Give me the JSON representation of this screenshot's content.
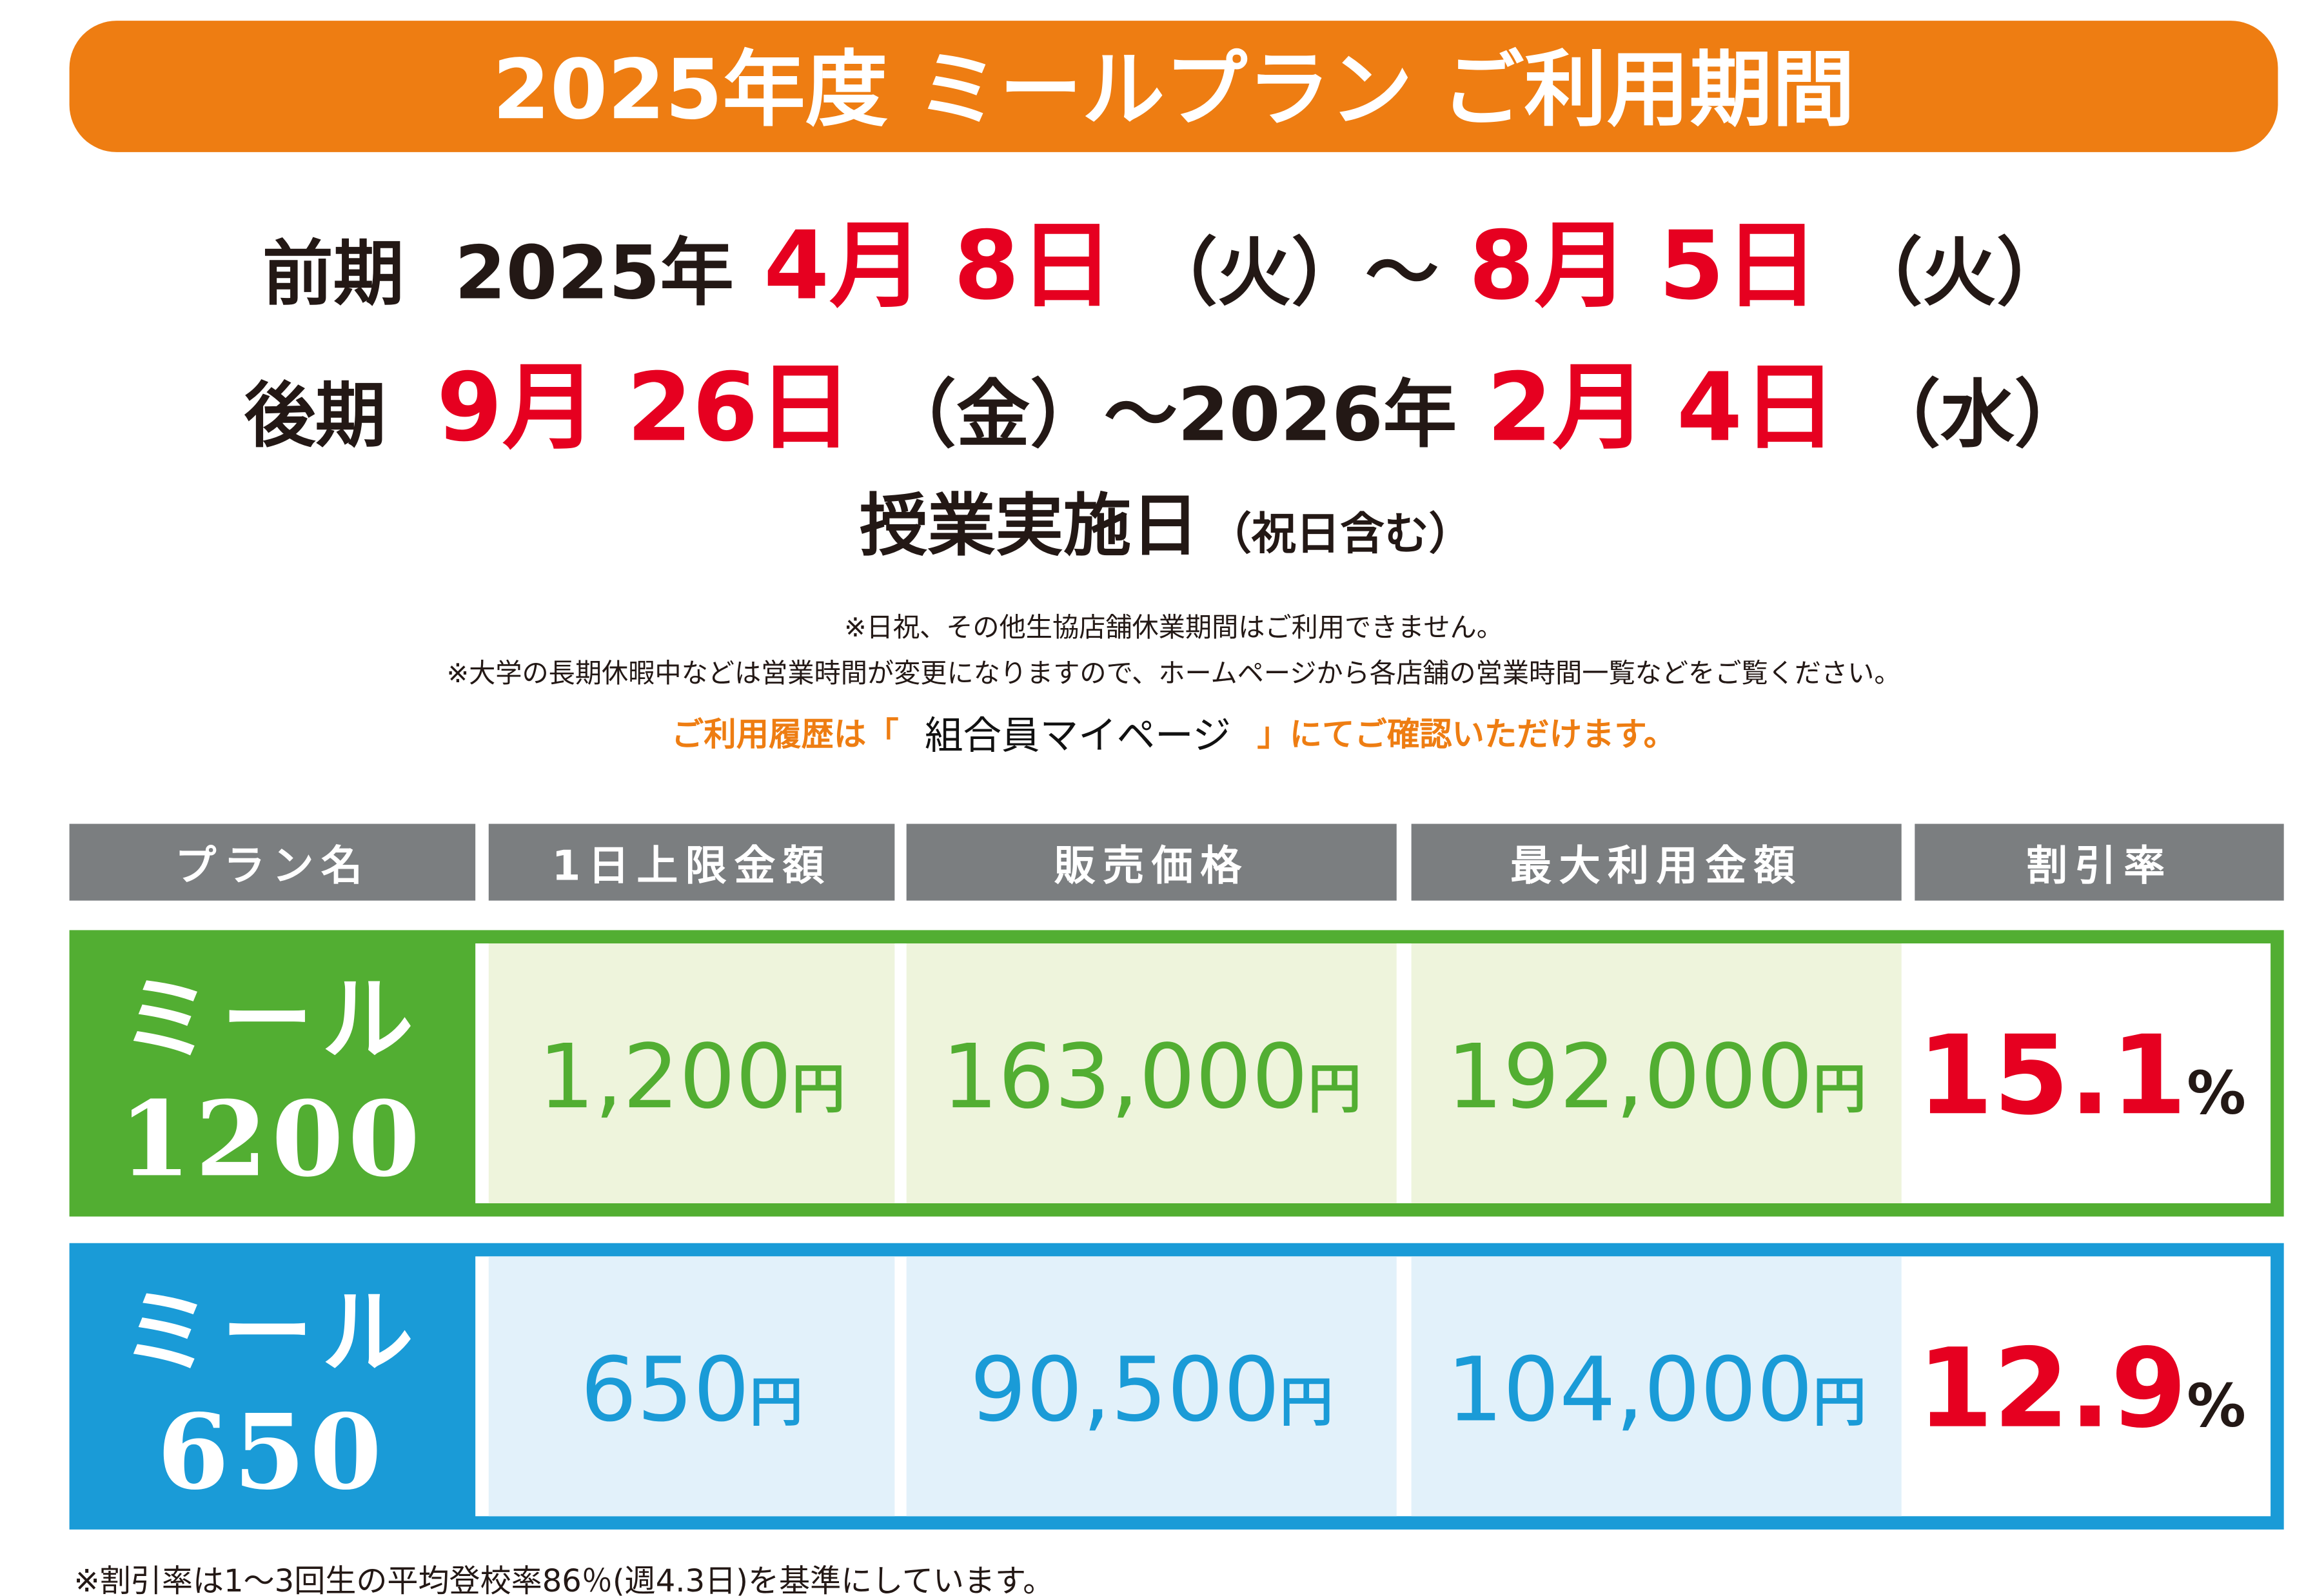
{
  "header": {
    "title": "2025年度 ミールプラン ご利用期間"
  },
  "periods": [
    {
      "segments": [
        "前期",
        "2025年",
        "4月",
        "8日",
        "（火）～",
        "8月",
        "5日",
        "（火）"
      ]
    },
    {
      "segments": [
        "後期",
        "9月",
        "26日",
        "（金）～2026年",
        "2月",
        "4日",
        "（水）"
      ]
    }
  ],
  "days": {
    "main": "授業実施日",
    "note": "（祝日含む）"
  },
  "notes": [
    "※日祝、その他生協店舗休業期間はご利用できません。",
    "※大学の長期休暇中などは営業時間が変更になりますので、ホームページから各店舗の営業時間一覧などをご覧ください。"
  ],
  "history": {
    "before": "ご利用履歴は「",
    "link": "組合員マイページ",
    "after": "」にてご確認いただけます。"
  },
  "table": {
    "headers": [
      "プラン名",
      "1日上限金額",
      "販売価格",
      "最大利用金額",
      "割引率"
    ],
    "rows": [
      {
        "name": "ミール",
        "code": "1200",
        "color": "#52ae32",
        "fill": "#eef4dc",
        "cells": [
          {
            "amount": "1,200",
            "unit": "円"
          },
          {
            "amount": "163,000",
            "unit": "円"
          },
          {
            "amount": "192,000",
            "unit": "円"
          }
        ],
        "rate": {
          "value": "15.1",
          "unit": "%"
        }
      },
      {
        "name": "ミール",
        "code": "650",
        "color": "#1a9bd7",
        "fill": "#e2f1fa",
        "cells": [
          {
            "amount": "650",
            "unit": "円"
          },
          {
            "amount": "90,500",
            "unit": "円"
          },
          {
            "amount": "104,000",
            "unit": "円"
          }
        ],
        "rate": {
          "value": "12.9",
          "unit": "%"
        }
      }
    ]
  },
  "footnote": "※割引率は1～3回生の平均登校率86％(週4.3日)を基準にしています。"
}
